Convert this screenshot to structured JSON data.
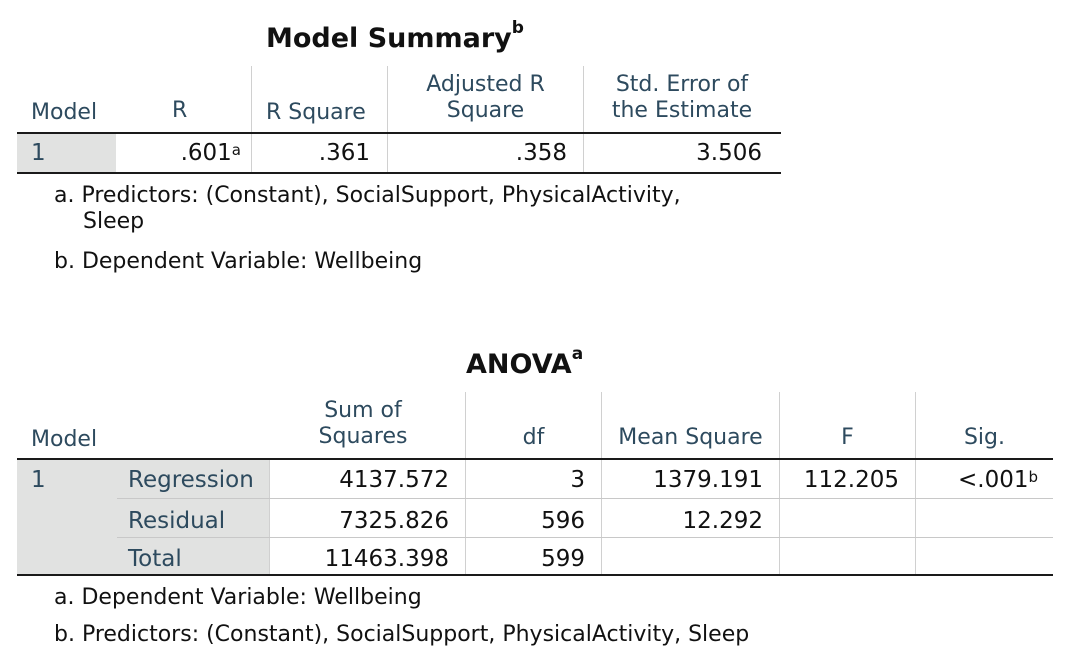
{
  "model_summary": {
    "title": "Model Summary",
    "title_sup": "b",
    "headers": {
      "model": "Model",
      "r": "R",
      "r_square": "R Square",
      "adj_r_line1": "Adjusted R",
      "adj_r_line2": "Square",
      "se_line1": "Std. Error of",
      "se_line2": "the Estimate"
    },
    "row": {
      "model": "1",
      "r": ".601",
      "r_sup": "a",
      "r_square": ".361",
      "adj_r_square": ".358",
      "std_error": "3.506"
    },
    "notes": {
      "a_line1": "a. Predictors: (Constant), SocialSupport, PhysicalActivity,",
      "a_line2": "Sleep",
      "b": "b. Dependent Variable: Wellbeing"
    }
  },
  "anova": {
    "title": "ANOVA",
    "title_sup": "a",
    "headers": {
      "model": "Model",
      "ss_line1": "Sum of",
      "ss_line2": "Squares",
      "df": "df",
      "ms": "Mean Square",
      "f": "F",
      "sig": "Sig."
    },
    "model": "1",
    "rows": [
      {
        "label": "Regression",
        "ss": "4137.572",
        "df": "3",
        "ms": "1379.191",
        "f": "112.205",
        "sig": "<.001",
        "sig_sup": "b"
      },
      {
        "label": "Residual",
        "ss": "7325.826",
        "df": "596",
        "ms": "12.292",
        "f": "",
        "sig": ""
      },
      {
        "label": "Total",
        "ss": "11463.398",
        "df": "599",
        "ms": "",
        "f": "",
        "sig": ""
      }
    ],
    "notes": {
      "a": "a. Dependent Variable: Wellbeing",
      "b": "b. Predictors: (Constant), SocialSupport, PhysicalActivity, Sleep"
    }
  }
}
